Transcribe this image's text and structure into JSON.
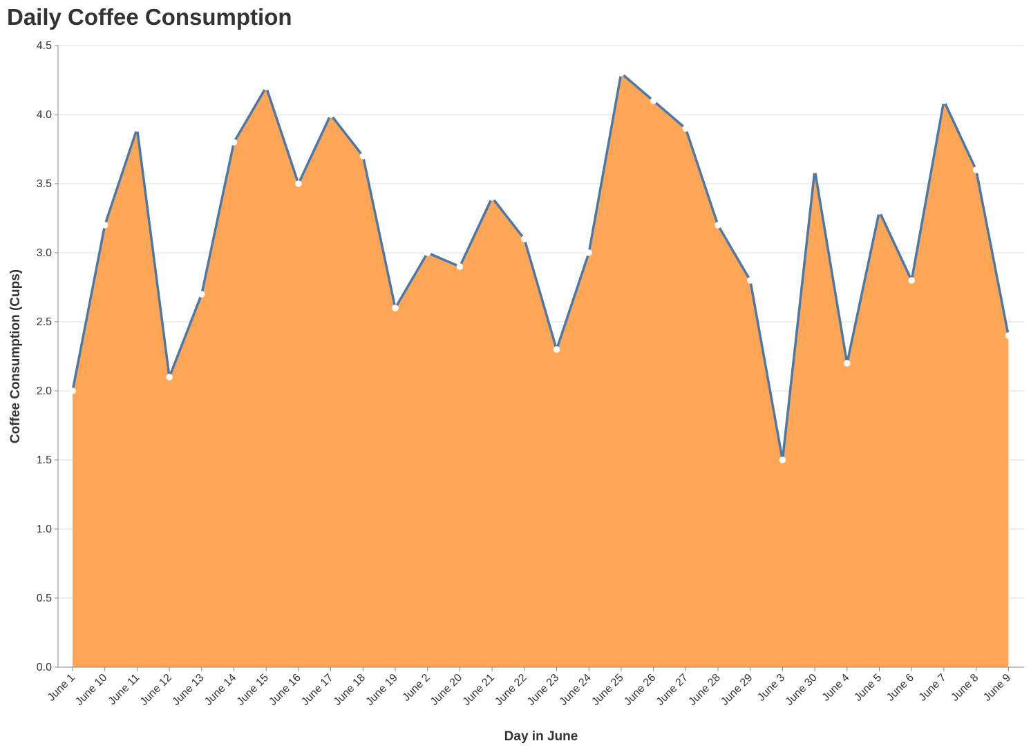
{
  "chart_data": {
    "type": "area",
    "title": "Daily Coffee Consumption",
    "xlabel": "Day in June",
    "ylabel": "Coffee Consumption (Cups)",
    "ylim": [
      0,
      4.5
    ],
    "y_ticks": [
      "0.0",
      "0.5",
      "1.0",
      "1.5",
      "2.0",
      "2.5",
      "3.0",
      "3.5",
      "4.0",
      "4.5"
    ],
    "grid": true,
    "categories": [
      "June 1",
      "June 10",
      "June 11",
      "June 12",
      "June 13",
      "June 14",
      "June 15",
      "June 16",
      "June 17",
      "June 18",
      "June 19",
      "June 2",
      "June 20",
      "June 21",
      "June 22",
      "June 23",
      "June 24",
      "June 25",
      "June 26",
      "June 27",
      "June 28",
      "June 29",
      "June 3",
      "June 30",
      "June 4",
      "June 5",
      "June 6",
      "June 7",
      "June 8",
      "June 9"
    ],
    "values": [
      2.0,
      3.2,
      3.9,
      2.1,
      2.7,
      3.8,
      4.2,
      3.5,
      4.0,
      3.7,
      2.6,
      3.0,
      2.9,
      3.4,
      3.1,
      2.3,
      3.0,
      4.3,
      4.1,
      3.9,
      3.2,
      2.8,
      1.5,
      3.6,
      2.2,
      3.3,
      2.8,
      4.1,
      3.6,
      2.4
    ],
    "colors": {
      "area_fill": "#FFA556",
      "line": "#4C78A8",
      "point_fill": "#FFFFFF",
      "grid": "#DDDDDD",
      "axis": "#888888"
    }
  }
}
